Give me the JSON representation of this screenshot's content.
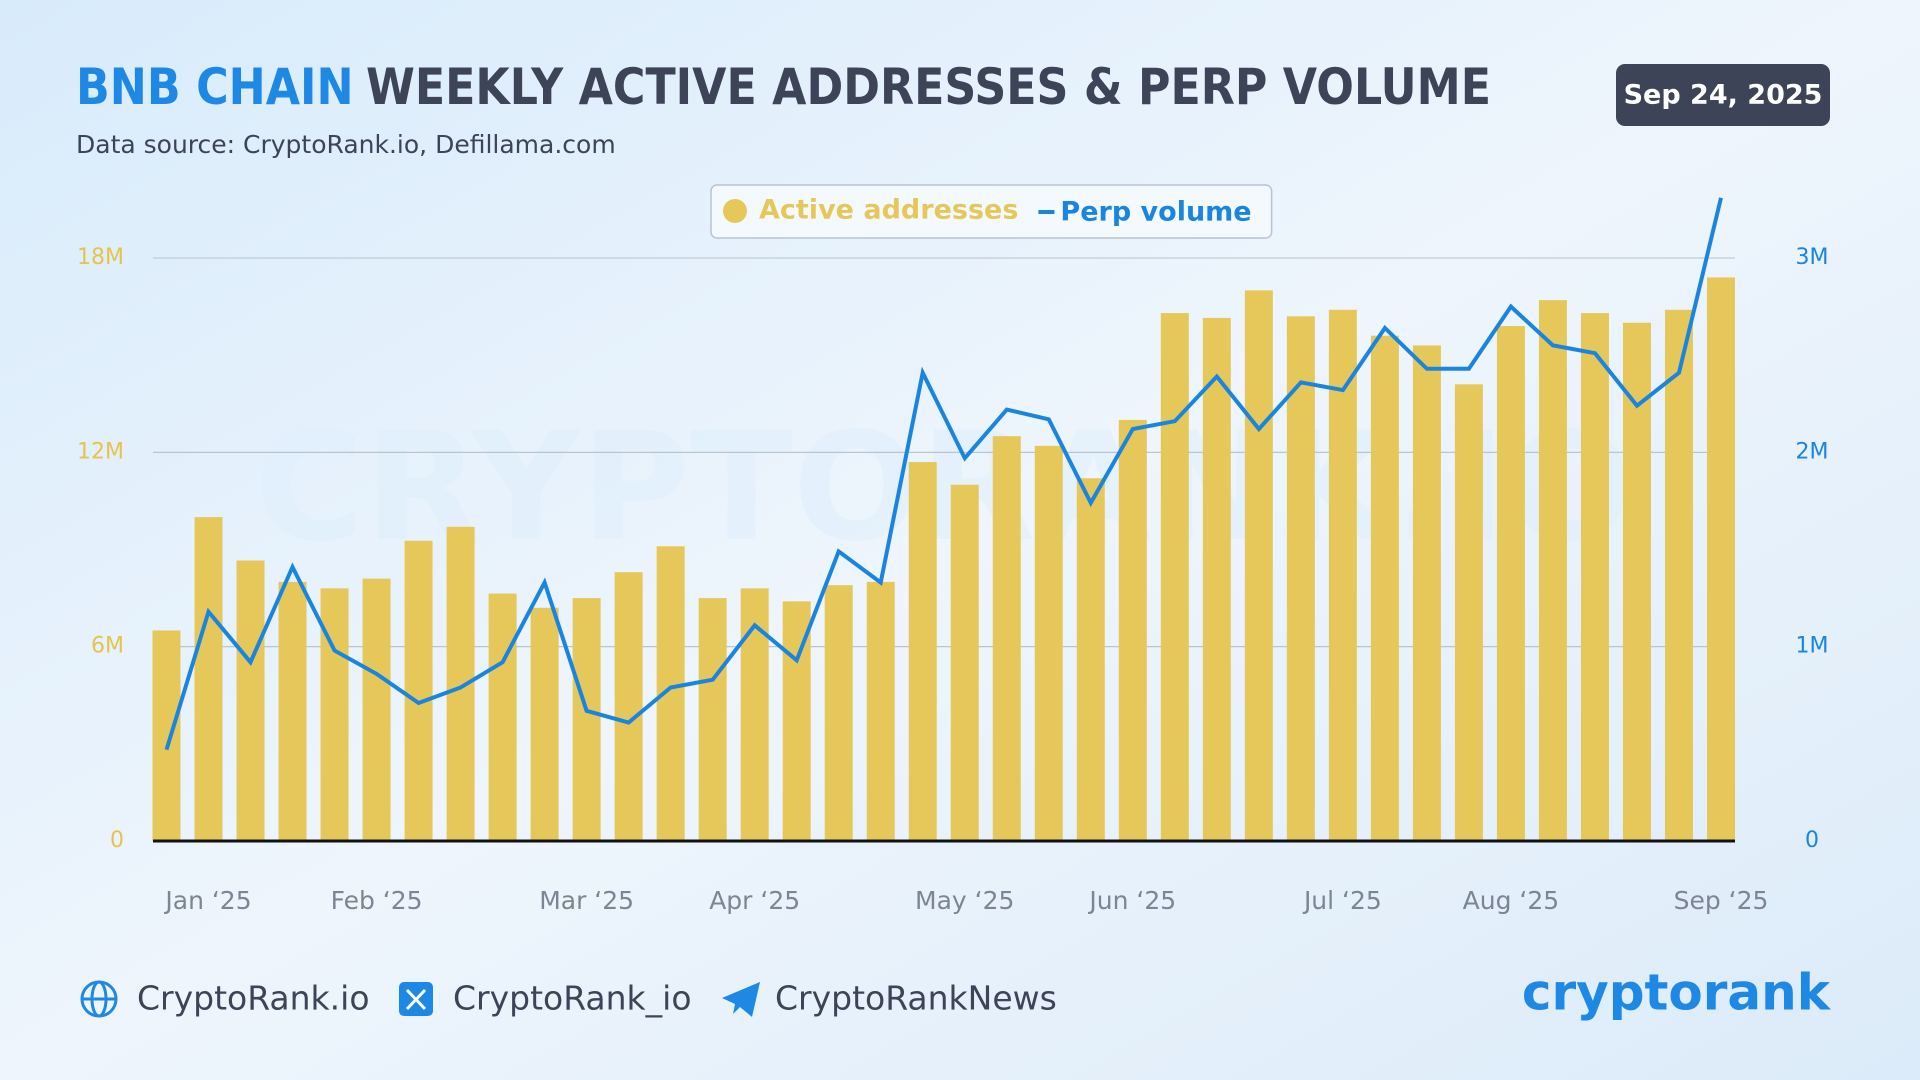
{
  "chart_data": {
    "type": "bar",
    "title_highlight": "BNB CHAIN",
    "title": "WEEKLY ACTIVE ADDRESSES & PERP VOLUME",
    "subtitle": "Data source: CryptoRank.io, Defillama.com",
    "categories": [
      null,
      "Jan ‘25",
      null,
      null,
      null,
      "Feb ‘25",
      null,
      null,
      null,
      null,
      "Mar ‘25",
      null,
      null,
      null,
      "Apr ‘25",
      null,
      null,
      null,
      null,
      "May ‘25",
      null,
      null,
      null,
      "Jun ‘25",
      null,
      null,
      null,
      null,
      "Jul ‘25",
      null,
      null,
      null,
      "Aug ‘25",
      null,
      null,
      null,
      null,
      "Sep ‘25"
    ],
    "series": [
      {
        "name": "Active addresses",
        "type": "bar",
        "color": "#e6c85a",
        "values": [
          6500000,
          10000000,
          8660000,
          8000000,
          7800000,
          8100000,
          9270000,
          9700000,
          7640000,
          7200000,
          7500000,
          8300000,
          9100000,
          7500000,
          7800000,
          7400000,
          7900000,
          8000000,
          11700000,
          11000000,
          12500000,
          12200000,
          11200000,
          13000000,
          16300000,
          16150000,
          17000000,
          16200000,
          16400000,
          15600000,
          15300000,
          14100000,
          15900000,
          16700000,
          16300000,
          16000000,
          16400000,
          17400000
        ]
      },
      {
        "name": "Perp volume",
        "type": "line",
        "axis": "y2",
        "color": "#1a85e0",
        "values": [
          470000,
          1180000,
          920000,
          1410000,
          980000,
          860000,
          710000,
          790000,
          920000,
          1330000,
          670000,
          610000,
          790000,
          830000,
          1110000,
          930000,
          1490000,
          1330000,
          2410000,
          1970000,
          2220000,
          2170000,
          1740000,
          2120000,
          2160000,
          2390000,
          2120000,
          2360000,
          2320000,
          2640000,
          2430000,
          2430000,
          2750000,
          2550000,
          2510000,
          2240000,
          2410000,
          3310000
        ]
      }
    ],
    "ylim": [
      0,
      18000000
    ],
    "yticks": [
      0,
      {
        "value": 6000000,
        "label": "6M"
      },
      {
        "value": 12000000,
        "label": "12M"
      },
      {
        "value": 18000000,
        "label": "18M"
      }
    ],
    "y2lim": [
      0,
      3000000
    ],
    "y2ticks": [
      0,
      {
        "value": 1000000,
        "label": "1M"
      },
      {
        "value": 2000000,
        "label": "2M"
      },
      {
        "value": 3000000,
        "label": "3M"
      }
    ],
    "grid": true
  },
  "date": "Sep 24, 2025",
  "watermark": "CRYPTORANK.IO",
  "footer": {
    "links": [
      "CryptoRank.io",
      "CryptoRank_io",
      "CryptoRankNews"
    ],
    "logo": "cryptorank"
  }
}
